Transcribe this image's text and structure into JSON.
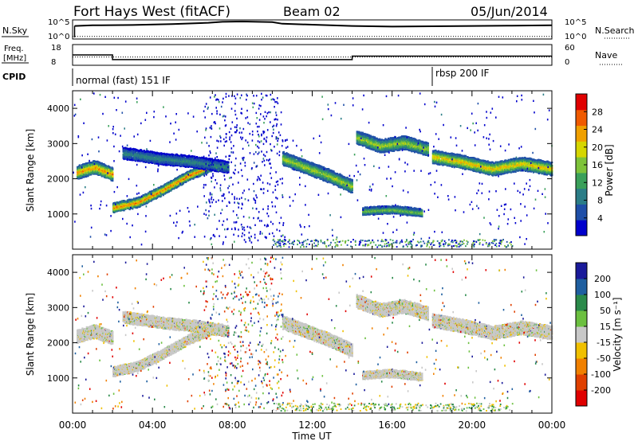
{
  "header": {
    "station": "Fort Hays West (fitACF)",
    "beam": "Beam 02",
    "date": "05/Jun/2014"
  },
  "panels": {
    "nsky": {
      "left_label": "N.Sky",
      "right_label": "N.Search",
      "ticks_left": [
        "10^5",
        "10^0"
      ],
      "ticks_right": [
        "10^5",
        "10^0"
      ]
    },
    "freq": {
      "left_label_1": "Freq.",
      "left_label_2": "[MHz]",
      "right_label": "Nave",
      "ticks_left": [
        "18",
        "8"
      ],
      "ticks_right": [
        "60",
        "0"
      ]
    },
    "cpid": {
      "label": "CPID",
      "segments": [
        {
          "name": "normal (fast) 151 IF",
          "start_hour": 0
        },
        {
          "name": "rbsp 200 IF",
          "start_hour": 18
        }
      ]
    }
  },
  "chart_data": [
    {
      "type": "line",
      "title": "N.Sky / N.Search",
      "x_range_hours": [
        0,
        24
      ],
      "series": [
        {
          "name": "N.Sky",
          "x": [
            0.1,
            1,
            3,
            5,
            6.8,
            7.5,
            8.5,
            10,
            10.5,
            12,
            14,
            16,
            18,
            20,
            22,
            24
          ],
          "log10_values": [
            3.6,
            3.8,
            3.9,
            4.2,
            4.6,
            4.9,
            5.0,
            4.8,
            4.3,
            4.0,
            3.6,
            3.4,
            3.5,
            3.6,
            3.7,
            3.8
          ]
        },
        {
          "name": "N.Search",
          "x": [
            0,
            4,
            8,
            12,
            16,
            20,
            24
          ],
          "log10_values": [
            0.3,
            0.3,
            0.3,
            0.3,
            0.3,
            0.3,
            0.3
          ]
        }
      ]
    },
    {
      "type": "line",
      "title": "Freq. / Nave",
      "x_range_hours": [
        0,
        24
      ],
      "series": [
        {
          "name": "Freq. [MHz]",
          "x": [
            0,
            2,
            2,
            14,
            14,
            24
          ],
          "values": [
            13,
            13,
            10.3,
            10.3,
            12.3,
            12.3
          ]
        },
        {
          "name": "Nave",
          "x": [
            0,
            24
          ],
          "values": [
            23,
            23
          ]
        }
      ]
    },
    {
      "type": "heatmap",
      "title": "Power [dB]",
      "xlabel": "Time UT",
      "ylabel": "Slant Range [km]",
      "x_ticks": [
        "00:00",
        "04:00",
        "08:00",
        "12:00",
        "16:00",
        "20:00",
        "00:00"
      ],
      "y_ticks": [
        1000,
        2000,
        3000,
        4000
      ],
      "x_range_hours": [
        0,
        24
      ],
      "ylim": [
        0,
        4500
      ],
      "colorbar": {
        "label": "Power [dB]",
        "ticks": [
          4,
          8,
          12,
          16,
          20,
          24,
          28
        ]
      },
      "echo_bands": [
        {
          "start_hour": 0.2,
          "end_hour": 2.0,
          "center_km": [
            2200,
            2350,
            2150
          ],
          "width_km": 350,
          "peak_db": 24
        },
        {
          "start_hour": 2.0,
          "end_hour": 7.0,
          "center_km": [
            1200,
            1350,
            1700,
            2100,
            2400
          ],
          "width_km": 250,
          "peak_db": 26
        },
        {
          "start_hour": 2.5,
          "end_hour": 7.8,
          "center_km": [
            2750,
            2600,
            2500,
            2350
          ],
          "width_km": 300,
          "peak_db": 10
        },
        {
          "start_hour": 10.5,
          "end_hour": 14.0,
          "center_km": [
            2600,
            2350,
            2100,
            1800
          ],
          "width_km": 350,
          "peak_db": 18
        },
        {
          "start_hour": 14.2,
          "end_hour": 17.8,
          "center_km": [
            3200,
            2950,
            3050,
            2850
          ],
          "width_km": 350,
          "peak_db": 18
        },
        {
          "start_hour": 14.5,
          "end_hour": 17.5,
          "center_km": [
            1100,
            1150,
            1050
          ],
          "width_km": 200,
          "peak_db": 16
        },
        {
          "start_hour": 18.0,
          "end_hour": 24.0,
          "center_km": [
            2650,
            2500,
            2300,
            2450,
            2300
          ],
          "width_km": 350,
          "peak_db": 22
        }
      ]
    },
    {
      "type": "heatmap",
      "title": "Velocity [m s^-1]",
      "xlabel": "Time UT",
      "ylabel": "Slant Range [km]",
      "x_ticks": [
        "00:00",
        "04:00",
        "08:00",
        "12:00",
        "16:00",
        "20:00",
        "00:00"
      ],
      "y_ticks": [
        1000,
        2000,
        3000,
        4000
      ],
      "x_range_hours": [
        0,
        24
      ],
      "ylim": [
        0,
        4500
      ],
      "colorbar": {
        "label": "Velocity [m s⁻¹]",
        "ticks": [
          200,
          100,
          50,
          15,
          -15,
          -50,
          -100,
          -200
        ]
      },
      "dominant_velocity_ms": 0
    }
  ],
  "colors": {
    "power_scale": [
      "#0000cc",
      "#1f4fa8",
      "#2b7d87",
      "#3aa05a",
      "#7ec33a",
      "#d6d600",
      "#f0a000",
      "#f05a00",
      "#e00000"
    ],
    "velocity_scale": [
      "#1a1a9a",
      "#1f5fa0",
      "#2a8a4a",
      "#6cc040",
      "#c8c8c8",
      "#f0c000",
      "#f08000",
      "#e04000",
      "#e00000"
    ]
  }
}
